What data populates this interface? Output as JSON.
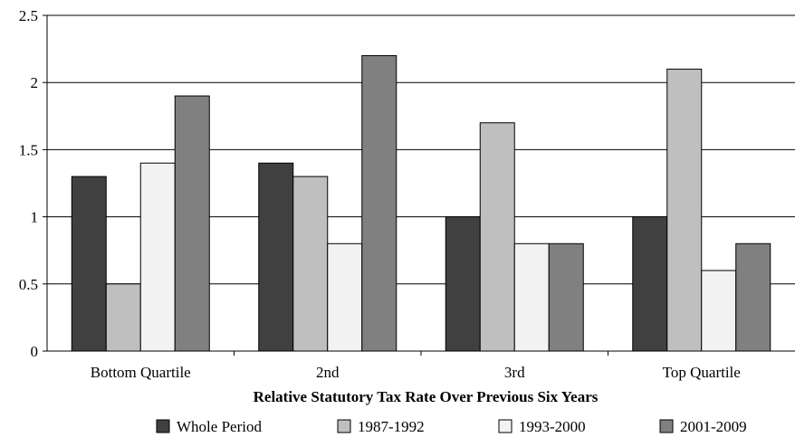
{
  "chart_data": {
    "type": "bar",
    "title": "",
    "xlabel": "Relative Statutory Tax Rate Over Previous Six Years",
    "ylabel": "",
    "ylim": [
      0,
      2.5
    ],
    "yticks": [
      "0",
      "0.5",
      "1",
      "1.5",
      "2",
      "2.5"
    ],
    "categories": [
      "Bottom Quartile",
      "2nd",
      "3rd",
      "Top Quartile"
    ],
    "series": [
      {
        "name": "Whole Period",
        "values": [
          1.3,
          1.4,
          1.0,
          1.0
        ],
        "color": "#404040"
      },
      {
        "name": "1987-1992",
        "values": [
          0.5,
          1.3,
          1.7,
          2.1
        ],
        "color": "#bfbfbf"
      },
      {
        "name": "1993-2000",
        "values": [
          1.4,
          0.8,
          0.8,
          0.6
        ],
        "color": "#f2f2f2"
      },
      {
        "name": "2001-2009",
        "values": [
          1.9,
          2.2,
          0.8,
          0.8
        ],
        "color": "#808080"
      }
    ],
    "grid": true,
    "legend_position": "bottom"
  }
}
